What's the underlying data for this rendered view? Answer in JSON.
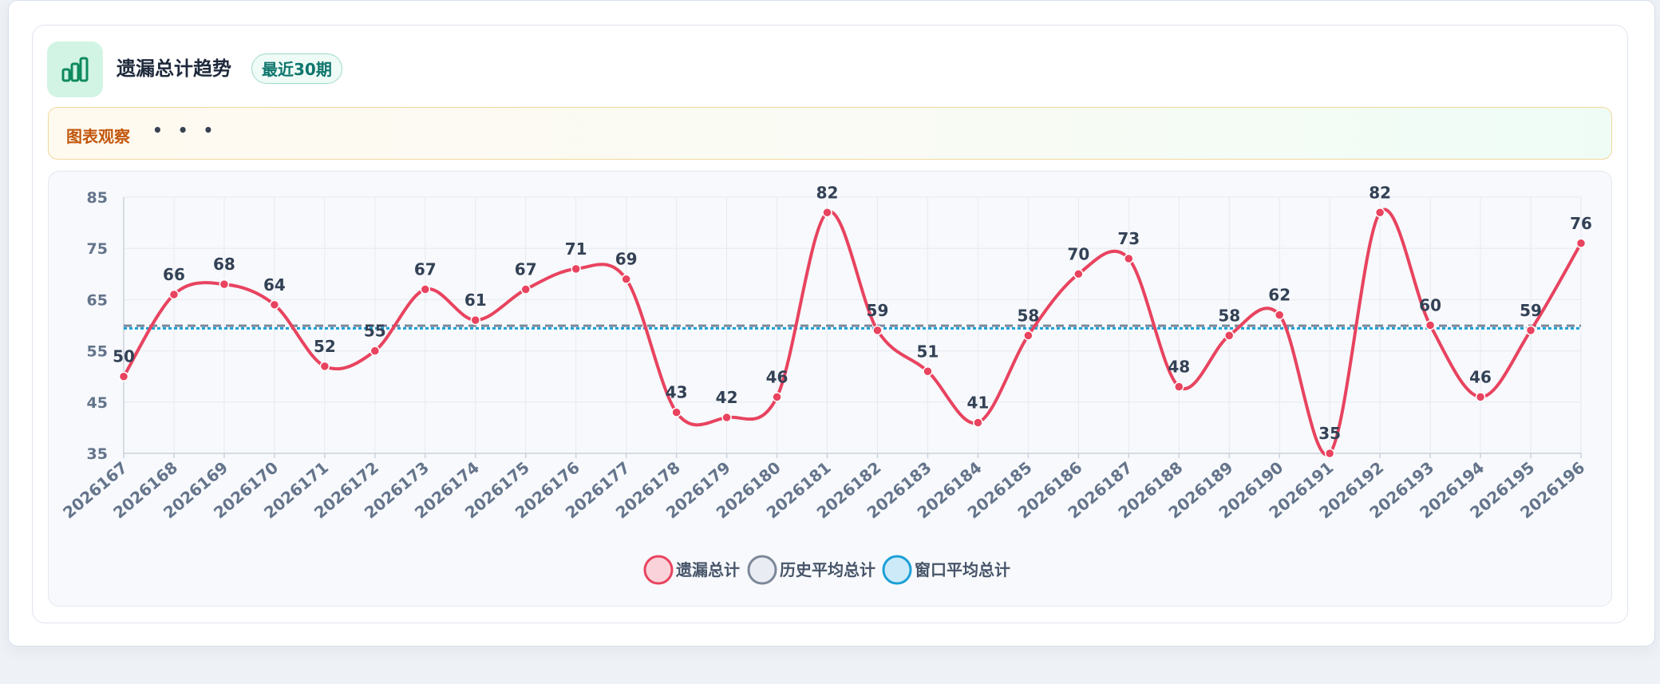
{
  "header": {
    "title": "遗漏总计趋势",
    "badge": "最近30期",
    "icon": "bar-chart-icon"
  },
  "observation": {
    "label": "图表观察",
    "more": "• • •"
  },
  "colors": {
    "series": "#e8435f",
    "history_avg": "#7c8799",
    "window_avg": "#1aa0d6",
    "icon_bg": "#d2f4e4",
    "icon_fg": "#0f8a5f"
  },
  "chart_data": {
    "type": "line",
    "categories": [
      "2026167",
      "2026168",
      "2026169",
      "2026170",
      "2026171",
      "2026172",
      "2026173",
      "2026174",
      "2026175",
      "2026176",
      "2026177",
      "2026178",
      "2026179",
      "2026180",
      "2026181",
      "2026182",
      "2026183",
      "2026184",
      "2026185",
      "2026186",
      "2026187",
      "2026188",
      "2026189",
      "2026190",
      "2026191",
      "2026192",
      "2026193",
      "2026194",
      "2026195",
      "2026196"
    ],
    "series": [
      {
        "name": "遗漏总计",
        "values": [
          50,
          66,
          68,
          64,
          52,
          55,
          67,
          61,
          67,
          71,
          69,
          43,
          42,
          46,
          82,
          59,
          51,
          41,
          58,
          70,
          73,
          48,
          58,
          62,
          35,
          82,
          60,
          46,
          59,
          76
        ]
      }
    ],
    "reference_lines": [
      {
        "name": "历史平均总计",
        "value": 59.9,
        "style": "dashed"
      },
      {
        "name": "窗口平均总计",
        "value": 59.4,
        "style": "dotted"
      }
    ],
    "yticks": [
      35,
      45,
      55,
      65,
      75,
      85
    ],
    "ylim": [
      35,
      85
    ],
    "grid": true,
    "legend": "bottom"
  }
}
